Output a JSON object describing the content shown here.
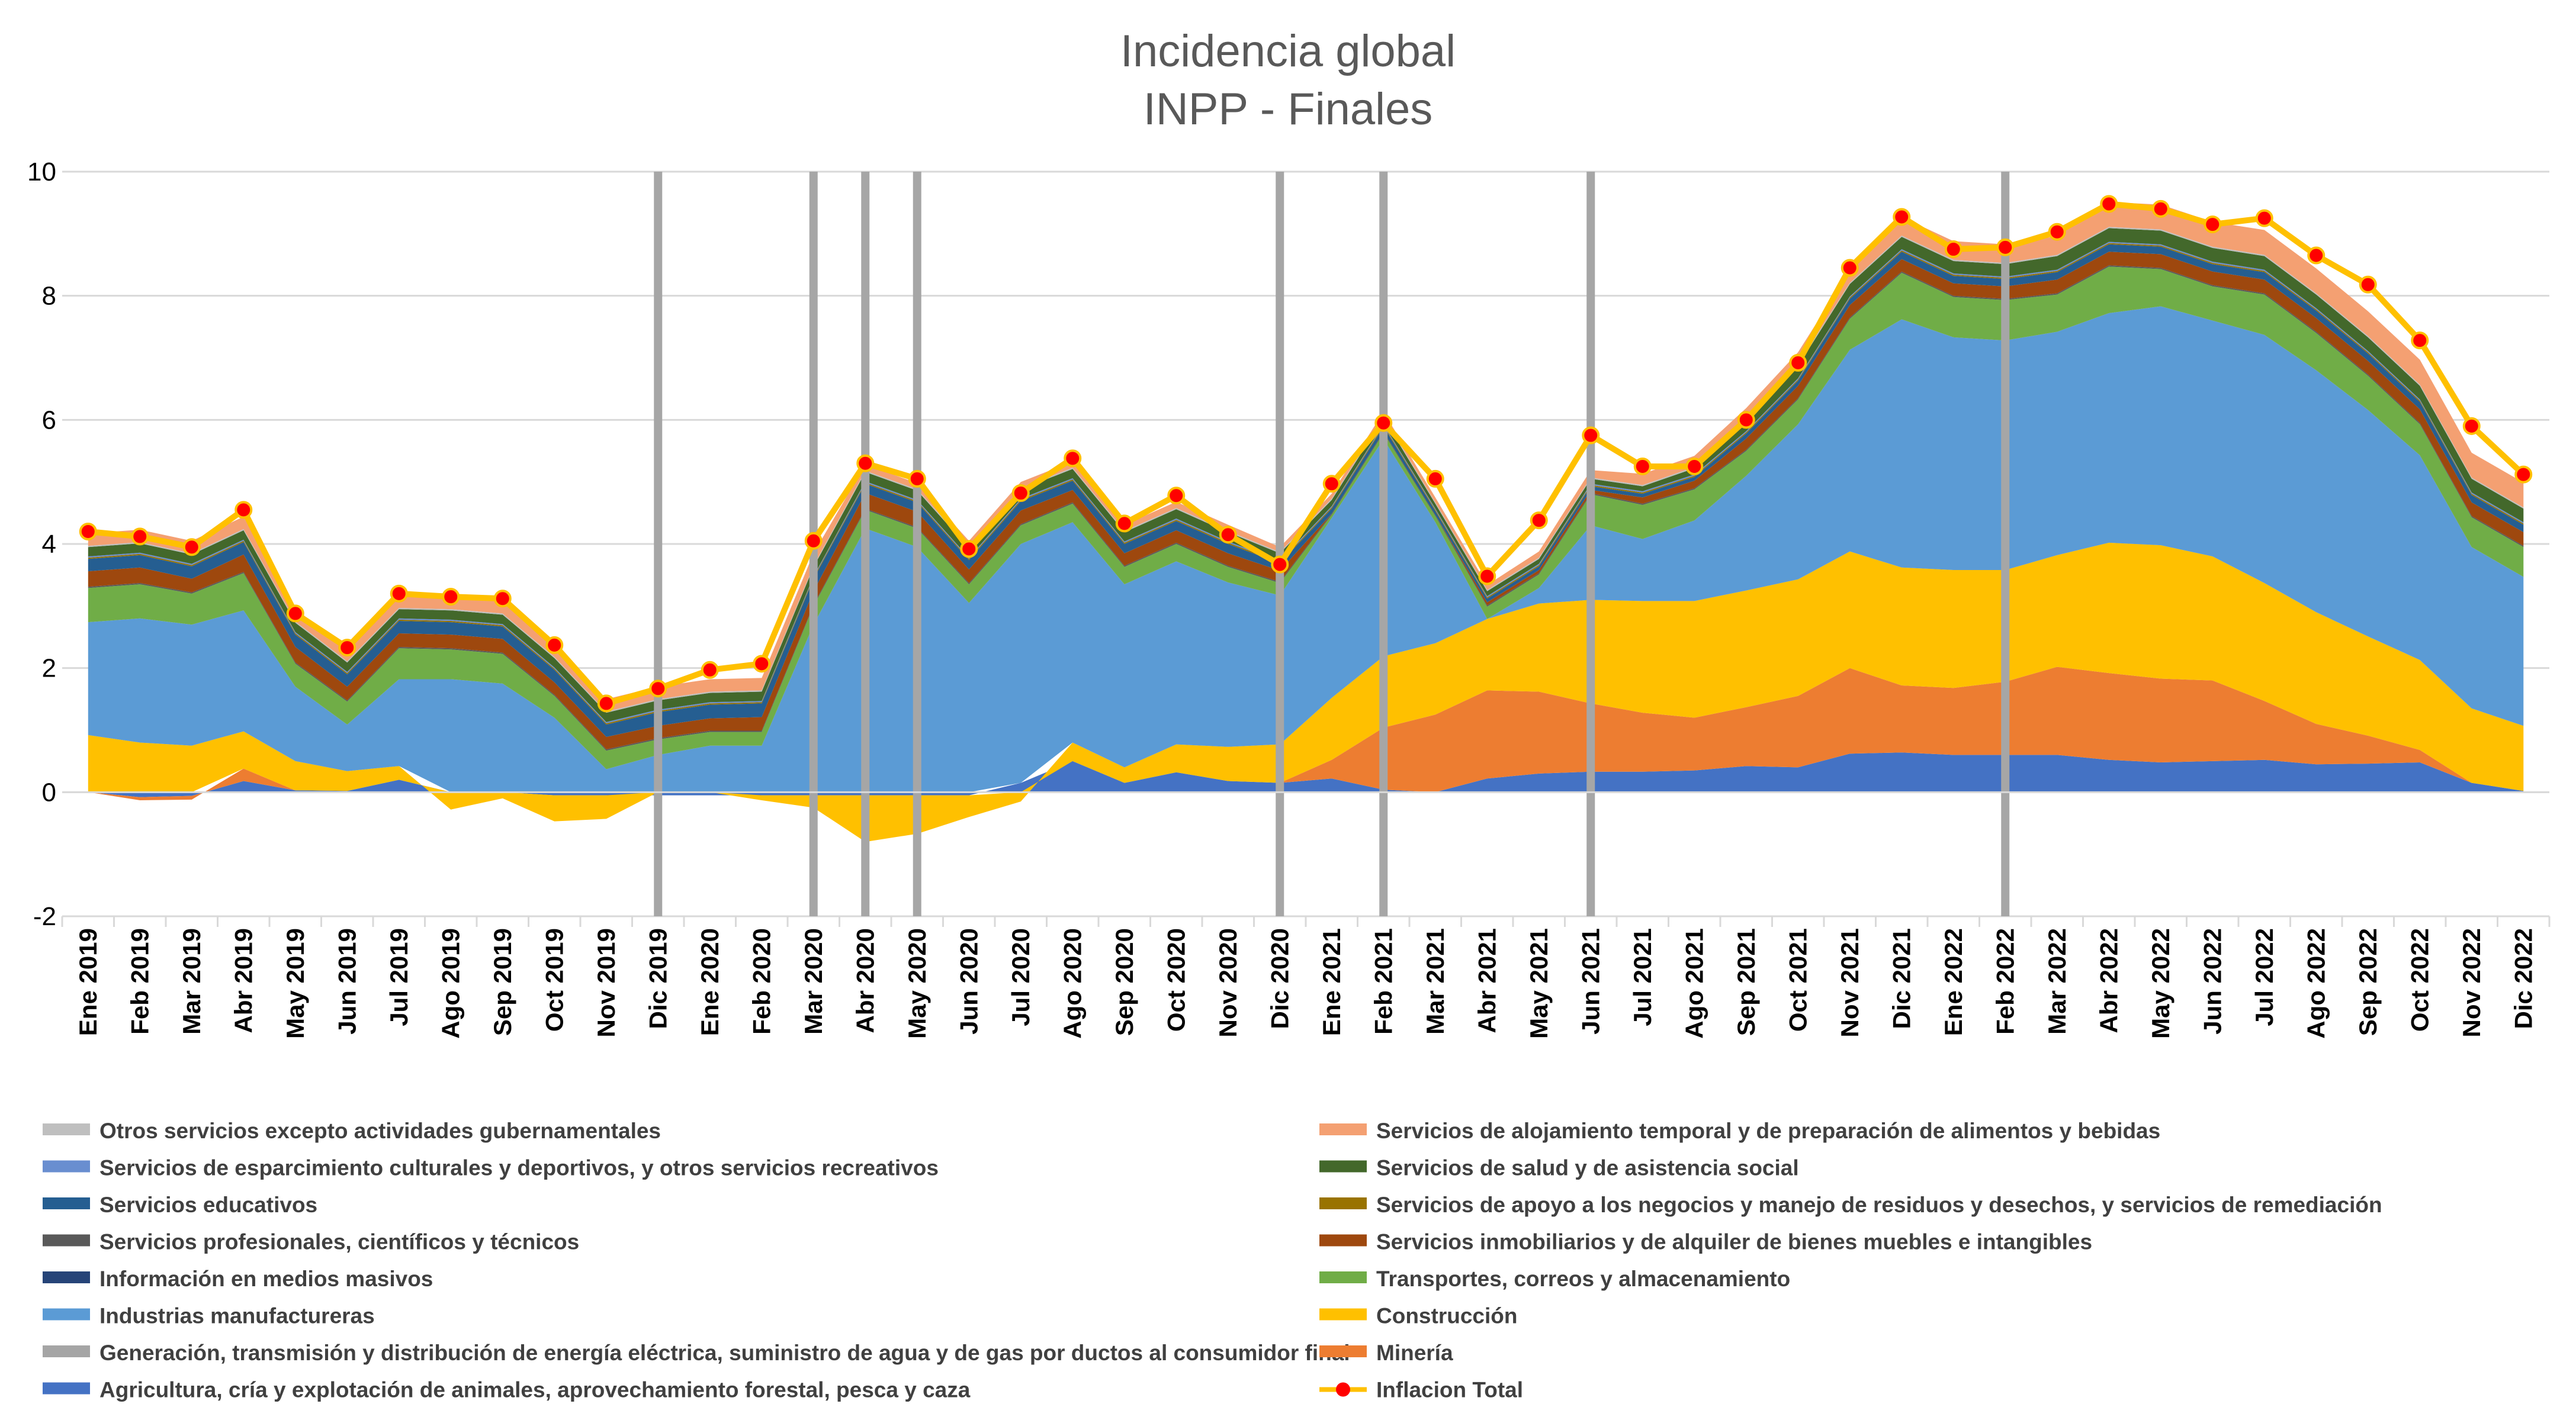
{
  "chart_data": {
    "type": "area",
    "title": [
      "Incidencia global",
      "INPP  - Finales"
    ],
    "xlabel": "",
    "ylabel": "",
    "ylim": [
      -2,
      10
    ],
    "yticks": [
      -2,
      0,
      2,
      4,
      6,
      8,
      10
    ],
    "grid": true,
    "legend_position": "bottom",
    "categories": [
      "Ene 2019",
      "Feb 2019",
      "Mar 2019",
      "Abr 2019",
      "May 2019",
      "Jun 2019",
      "Jul 2019",
      "Ago 2019",
      "Sep 2019",
      "Oct 2019",
      "Nov 2019",
      "Dic 2019",
      "Ene 2020",
      "Feb 2020",
      "Mar 2020",
      "Abr 2020",
      "May 2020",
      "Jun 2020",
      "Jul 2020",
      "Ago 2020",
      "Sep 2020",
      "Oct 2020",
      "Nov 2020",
      "Dic 2020",
      "Ene 2021",
      "Feb 2021",
      "Mar 2021",
      "Abr 2021",
      "May 2021",
      "Jun 2021",
      "Jul 2021",
      "Ago 2021",
      "Sep 2021",
      "Oct 2021",
      "Nov 2021",
      "Dic 2021",
      "Ene 2022",
      "Feb 2022",
      "Mar 2022",
      "Abr 2022",
      "May 2022",
      "Jun 2022",
      "Jul 2022",
      "Ago 2022",
      "Sep 2022",
      "Oct 2022",
      "Nov 2022",
      "Dic 2022"
    ],
    "vertical_markers": [
      "Dic 2019",
      "Mar 2020",
      "Abr 2020",
      "May 2020",
      "Dic 2020",
      "Feb 2021",
      "Jun 2021",
      "Feb 2022"
    ],
    "marker_color": "#a6a6a6",
    "series": [
      {
        "name": "Agricultura, cría y explotación de animales, aprovechamiento forestal, pesca y caza",
        "color": "#4472c4",
        "values": [
          0.0,
          -0.08,
          -0.06,
          0.18,
          0.03,
          0.02,
          0.2,
          0.0,
          0.0,
          -0.05,
          -0.05,
          -0.05,
          -0.05,
          -0.05,
          -0.05,
          -0.05,
          -0.05,
          -0.05,
          0.15,
          0.5,
          0.15,
          0.32,
          0.18,
          0.15,
          0.22,
          0.04,
          0.0,
          0.22,
          0.3,
          0.33,
          0.33,
          0.35,
          0.42,
          0.4,
          0.62,
          0.64,
          0.6,
          0.6,
          0.6,
          0.52,
          0.48,
          0.5,
          0.52,
          0.45,
          0.46,
          0.48,
          0.15,
          0.02
        ]
      },
      {
        "name": "Minería",
        "color": "#ed7d31",
        "values": [
          0.0,
          -0.05,
          -0.06,
          0.2,
          0.0,
          0.0,
          0.0,
          0.0,
          0.0,
          0.0,
          0.0,
          0.0,
          0.0,
          0.0,
          0.0,
          0.0,
          0.0,
          0.0,
          0.0,
          0.0,
          0.0,
          0.0,
          0.0,
          0.0,
          0.3,
          1.0,
          1.25,
          1.42,
          1.32,
          1.1,
          0.95,
          0.85,
          0.95,
          1.15,
          1.38,
          1.08,
          1.08,
          1.18,
          1.42,
          1.4,
          1.35,
          1.3,
          0.95,
          0.65,
          0.45,
          0.2,
          0.0,
          0.0
        ]
      },
      {
        "name": "Generación, transmisión y distribución de energía eléctrica, suministro de agua y de gas por ductos al consumidor final",
        "color": "#a5a5a5",
        "values": [
          0.0,
          0.0,
          0.0,
          0.0,
          0.0,
          0.0,
          0.0,
          0.0,
          0.0,
          0.0,
          0.0,
          0.0,
          0.0,
          0.0,
          0.0,
          0.0,
          0.0,
          0.0,
          0.0,
          0.0,
          0.0,
          0.0,
          0.0,
          0.0,
          0.0,
          0.0,
          0.0,
          0.0,
          0.0,
          0.0,
          0.0,
          0.0,
          0.0,
          0.0,
          0.0,
          0.0,
          0.0,
          0.0,
          0.0,
          0.0,
          0.0,
          0.0,
          0.0,
          0.0,
          0.0,
          0.0,
          0.0,
          0.0
        ]
      },
      {
        "name": "Construcción",
        "color": "#ffc000",
        "values": [
          0.92,
          0.8,
          0.75,
          0.6,
          0.47,
          0.32,
          0.22,
          -0.28,
          -0.1,
          -0.42,
          -0.38,
          0.0,
          0.0,
          -0.08,
          -0.2,
          -0.75,
          -0.62,
          -0.35,
          -0.15,
          0.3,
          0.25,
          0.45,
          0.55,
          0.62,
          1.0,
          1.15,
          1.15,
          1.15,
          1.42,
          1.67,
          1.8,
          1.88,
          1.88,
          1.88,
          1.88,
          1.9,
          1.9,
          1.8,
          1.8,
          2.1,
          2.15,
          2.0,
          1.9,
          1.8,
          1.6,
          1.45,
          1.2,
          1.05
        ]
      },
      {
        "name": "Industrias manufactureras",
        "color": "#5b9bd5",
        "values": [
          1.82,
          2.0,
          1.95,
          1.95,
          1.2,
          0.75,
          1.4,
          1.82,
          1.75,
          1.2,
          0.37,
          0.6,
          0.75,
          0.75,
          2.7,
          4.25,
          3.95,
          3.05,
          3.85,
          3.55,
          2.95,
          2.95,
          2.65,
          2.4,
          2.9,
          3.5,
          1.95,
          0.0,
          0.25,
          1.2,
          1.0,
          1.3,
          1.85,
          2.5,
          3.25,
          4.0,
          3.75,
          3.7,
          3.6,
          3.7,
          3.85,
          3.8,
          4.0,
          3.9,
          3.65,
          3.3,
          2.6,
          2.4
        ]
      },
      {
        "name": "Información en medios masivos",
        "color": "#264478",
        "values": [
          0.0,
          0.0,
          0.0,
          0.0,
          0.0,
          0.0,
          0.0,
          0.0,
          0.0,
          0.0,
          0.0,
          0.0,
          0.0,
          0.0,
          0.0,
          0.0,
          0.0,
          0.0,
          0.0,
          0.0,
          0.0,
          0.0,
          0.0,
          0.0,
          0.0,
          0.0,
          0.0,
          0.0,
          0.0,
          0.0,
          0.0,
          0.0,
          0.0,
          0.0,
          0.0,
          0.0,
          0.0,
          0.0,
          0.0,
          0.0,
          0.0,
          0.0,
          0.0,
          0.0,
          0.0,
          0.0,
          0.0,
          0.0
        ]
      },
      {
        "name": "Transportes, correos y almacenamiento",
        "color": "#70ad47",
        "values": [
          0.55,
          0.55,
          0.5,
          0.6,
          0.37,
          0.37,
          0.5,
          0.48,
          0.48,
          0.35,
          0.3,
          0.25,
          0.22,
          0.22,
          0.3,
          0.3,
          0.3,
          0.3,
          0.3,
          0.3,
          0.28,
          0.28,
          0.25,
          0.2,
          0.05,
          0.1,
          0.1,
          0.2,
          0.22,
          0.5,
          0.55,
          0.5,
          0.4,
          0.4,
          0.5,
          0.75,
          0.65,
          0.65,
          0.6,
          0.75,
          0.6,
          0.55,
          0.65,
          0.6,
          0.55,
          0.5,
          0.48,
          0.48
        ]
      },
      {
        "name": "Servicios profesionales, científicos y técnicos",
        "color": "#595959",
        "values": [
          0.02,
          0.02,
          0.02,
          0.02,
          0.02,
          0.02,
          0.02,
          0.02,
          0.02,
          0.02,
          0.02,
          0.02,
          0.02,
          0.02,
          0.02,
          0.02,
          0.02,
          0.02,
          0.02,
          0.02,
          0.02,
          0.02,
          0.02,
          0.02,
          0.02,
          0.02,
          0.02,
          0.02,
          0.02,
          0.02,
          0.02,
          0.02,
          0.02,
          0.02,
          0.02,
          0.02,
          0.02,
          0.02,
          0.02,
          0.02,
          0.02,
          0.02,
          0.02,
          0.02,
          0.02,
          0.02,
          0.02,
          0.02
        ]
      },
      {
        "name": "Servicios inmobiliarios y de alquiler de bienes muebles e intangibles",
        "color": "#9e480e",
        "values": [
          0.25,
          0.25,
          0.22,
          0.28,
          0.25,
          0.22,
          0.22,
          0.22,
          0.22,
          0.2,
          0.2,
          0.2,
          0.2,
          0.22,
          0.22,
          0.25,
          0.25,
          0.22,
          0.22,
          0.2,
          0.2,
          0.2,
          0.2,
          0.18,
          0.0,
          0.0,
          0.0,
          0.05,
          0.05,
          0.05,
          0.1,
          0.12,
          0.18,
          0.2,
          0.2,
          0.2,
          0.2,
          0.2,
          0.22,
          0.22,
          0.22,
          0.22,
          0.22,
          0.22,
          0.22,
          0.22,
          0.22,
          0.22
        ]
      },
      {
        "name": "Servicios educativos",
        "color": "#255e91",
        "values": [
          0.2,
          0.2,
          0.2,
          0.2,
          0.2,
          0.2,
          0.2,
          0.2,
          0.2,
          0.2,
          0.2,
          0.22,
          0.22,
          0.22,
          0.2,
          0.15,
          0.15,
          0.15,
          0.15,
          0.15,
          0.15,
          0.15,
          0.15,
          0.12,
          0.08,
          0.08,
          0.06,
          0.06,
          0.06,
          0.06,
          0.06,
          0.06,
          0.08,
          0.08,
          0.1,
          0.12,
          0.12,
          0.12,
          0.12,
          0.12,
          0.12,
          0.12,
          0.12,
          0.12,
          0.12,
          0.12,
          0.12,
          0.12
        ]
      },
      {
        "name": "Servicios de apoyo a los negocios y manejo de residuos y desechos, y servicios de remediación",
        "color": "#997300",
        "values": [
          0.02,
          0.02,
          0.02,
          0.02,
          0.02,
          0.02,
          0.02,
          0.02,
          0.02,
          0.02,
          0.02,
          0.02,
          0.02,
          0.02,
          0.02,
          0.02,
          0.02,
          0.02,
          0.02,
          0.02,
          0.02,
          0.02,
          0.02,
          0.02,
          0.02,
          0.02,
          0.02,
          0.02,
          0.02,
          0.02,
          0.02,
          0.02,
          0.02,
          0.02,
          0.02,
          0.02,
          0.02,
          0.02,
          0.02,
          0.02,
          0.02,
          0.02,
          0.02,
          0.02,
          0.02,
          0.02,
          0.02,
          0.02
        ]
      },
      {
        "name": "Servicios de esparcimiento culturales y deportivos, y otros servicios recreativos",
        "color": "#698ed0",
        "values": [
          0.02,
          0.02,
          0.02,
          0.02,
          0.02,
          0.02,
          0.02,
          0.02,
          0.02,
          0.02,
          0.02,
          0.02,
          0.02,
          0.02,
          0.02,
          0.02,
          0.02,
          0.02,
          0.02,
          0.02,
          0.02,
          0.02,
          0.02,
          0.02,
          0.02,
          0.02,
          0.02,
          0.02,
          0.02,
          0.02,
          0.02,
          0.02,
          0.02,
          0.02,
          0.02,
          0.02,
          0.02,
          0.02,
          0.02,
          0.02,
          0.02,
          0.02,
          0.02,
          0.02,
          0.02,
          0.02,
          0.02,
          0.02
        ]
      },
      {
        "name": "Servicios de salud y de asistencia social",
        "color": "#43682b",
        "values": [
          0.15,
          0.15,
          0.15,
          0.15,
          0.15,
          0.15,
          0.15,
          0.15,
          0.15,
          0.15,
          0.15,
          0.15,
          0.15,
          0.15,
          0.15,
          0.15,
          0.15,
          0.15,
          0.15,
          0.15,
          0.15,
          0.15,
          0.15,
          0.12,
          0.1,
          0.1,
          0.08,
          0.08,
          0.08,
          0.08,
          0.08,
          0.1,
          0.15,
          0.2,
          0.2,
          0.2,
          0.2,
          0.2,
          0.22,
          0.22,
          0.22,
          0.22,
          0.22,
          0.22,
          0.22,
          0.22,
          0.22,
          0.22
        ]
      },
      {
        "name": "Otros servicios excepto actividades gubernamentales",
        "color": "#bfbfbf",
        "values": [
          0.02,
          0.02,
          0.02,
          0.02,
          0.02,
          0.02,
          0.02,
          0.02,
          0.02,
          0.02,
          0.02,
          0.02,
          0.02,
          0.02,
          0.02,
          0.02,
          0.02,
          0.02,
          0.02,
          0.02,
          0.02,
          0.02,
          0.02,
          0.02,
          0.02,
          0.02,
          0.02,
          0.02,
          0.02,
          0.02,
          0.02,
          0.02,
          0.02,
          0.02,
          0.02,
          0.02,
          0.02,
          0.02,
          0.02,
          0.02,
          0.02,
          0.02,
          0.02,
          0.02,
          0.02,
          0.02,
          0.02,
          0.02
        ]
      },
      {
        "name": "Servicios de alojamiento temporal y de preparación de alimentos y bebidas",
        "color": "#f4a072",
        "values": [
          0.2,
          0.2,
          0.2,
          0.2,
          0.2,
          0.2,
          0.2,
          0.2,
          0.2,
          0.2,
          0.2,
          0.2,
          0.2,
          0.2,
          0.2,
          0.1,
          0.1,
          0.1,
          0.1,
          0.1,
          0.1,
          0.1,
          0.1,
          0.08,
          0.08,
          0.08,
          0.08,
          0.08,
          0.1,
          0.12,
          0.18,
          0.18,
          0.2,
          0.2,
          0.2,
          0.3,
          0.3,
          0.3,
          0.3,
          0.4,
          0.4,
          0.4,
          0.4,
          0.4,
          0.4,
          0.4,
          0.4,
          0.4
        ]
      }
    ],
    "total": {
      "name": "Inflacion Total",
      "line_color": "#ffc000",
      "marker_color": "#ff0000",
      "values": [
        4.2,
        4.12,
        3.95,
        4.55,
        2.88,
        2.33,
        3.2,
        3.15,
        3.12,
        2.37,
        1.43,
        1.67,
        1.97,
        2.07,
        4.05,
        5.3,
        5.05,
        3.92,
        4.82,
        5.38,
        4.33,
        4.78,
        4.15,
        3.67,
        4.97,
        5.95,
        5.05,
        3.48,
        4.38,
        5.75,
        5.25,
        5.25,
        6.0,
        6.92,
        8.45,
        9.27,
        8.75,
        8.78,
        9.03,
        9.48,
        9.4,
        9.15,
        9.25,
        8.65,
        8.18,
        7.28,
        5.9,
        5.12
      ]
    }
  }
}
